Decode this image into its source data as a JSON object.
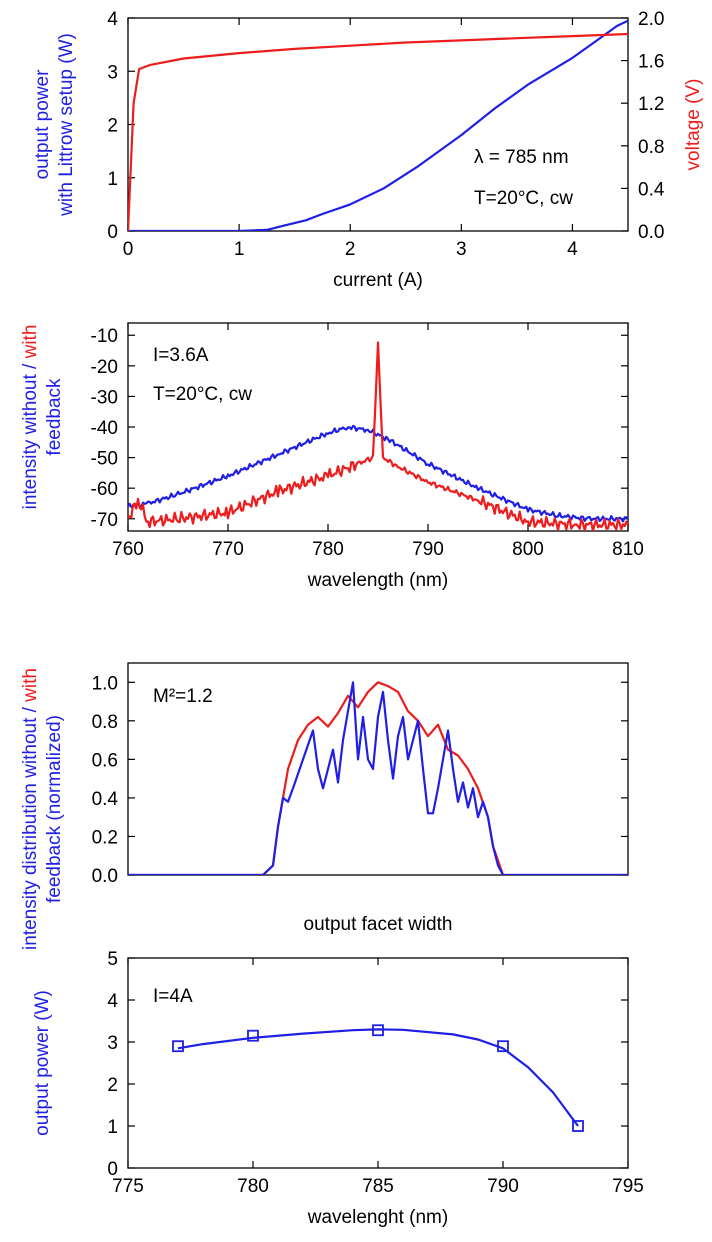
{
  "colors": {
    "blue": "#1f1fe6",
    "red": "#ee1c1c",
    "axis": "#000000"
  },
  "chart_data": [
    {
      "type": "line",
      "xlabel": "current (A)",
      "ylabel": "output power\nwith Littrow setup (W)",
      "y2label": "voltage (V)",
      "xlim": [
        0,
        4.5
      ],
      "ylim": [
        0,
        4
      ],
      "y2lim": [
        0,
        2
      ],
      "xticks": [
        0,
        1,
        2,
        3,
        4
      ],
      "yticks": [
        0,
        1,
        2,
        3,
        4
      ],
      "y2ticks": [
        "0.0",
        "0.4",
        "0.8",
        "1.2",
        "1.6",
        "2.0"
      ],
      "annotations": [
        "λ = 785 nm",
        "T=20°C, cw"
      ],
      "series": [
        {
          "color": "blue",
          "axis": "left",
          "x": [
            0,
            1.0,
            1.25,
            1.4,
            1.6,
            1.75,
            2.0,
            2.3,
            2.6,
            3.0,
            3.3,
            3.6,
            4.0,
            4.2,
            4.4,
            4.5
          ],
          "y": [
            0,
            0,
            0.02,
            0.1,
            0.2,
            0.32,
            0.5,
            0.8,
            1.2,
            1.8,
            2.3,
            2.75,
            3.25,
            3.55,
            3.85,
            3.95
          ]
        },
        {
          "color": "red",
          "axis": "right",
          "x": [
            0,
            0.05,
            0.1,
            0.2,
            0.5,
            1.0,
            1.5,
            2.0,
            2.5,
            3.0,
            3.5,
            4.0,
            4.5
          ],
          "y": [
            0,
            1.2,
            1.52,
            1.56,
            1.62,
            1.67,
            1.71,
            1.74,
            1.77,
            1.79,
            1.81,
            1.83,
            1.85
          ]
        }
      ]
    },
    {
      "type": "line",
      "xlabel": "wavelength (nm)",
      "ylabel_parts": [
        "intensity without / ",
        "with",
        "feedback"
      ],
      "xlim": [
        760,
        810
      ],
      "ylim": [
        -74,
        -6
      ],
      "xticks": [
        760,
        770,
        780,
        790,
        800,
        810
      ],
      "yticks": [
        -10,
        -20,
        -30,
        -40,
        -50,
        -60,
        -70
      ],
      "annotations": [
        "I=3.6A",
        "T=20°C, cw"
      ],
      "series": [
        {
          "color": "blue",
          "x": [
            760,
            762,
            765,
            770,
            775,
            780,
            782,
            784,
            786,
            790,
            795,
            800,
            803,
            806,
            810
          ],
          "y": [
            -66,
            -65,
            -62,
            -56,
            -49,
            -42,
            -40,
            -41,
            -44,
            -52,
            -60,
            -67,
            -69,
            -70,
            -70
          ]
        },
        {
          "color": "red",
          "x": [
            760,
            761,
            762,
            765,
            770,
            775,
            780,
            783,
            784.5,
            785,
            785.5,
            787,
            790,
            795,
            800,
            805,
            810
          ],
          "y": [
            -70,
            -64,
            -71,
            -70,
            -68,
            -61,
            -56,
            -52,
            -50,
            -13,
            -50,
            -53,
            -58,
            -64,
            -71,
            -72,
            -72
          ]
        }
      ]
    },
    {
      "type": "line",
      "xlabel": "output facet width",
      "ylabel_parts": [
        "intensity distribution without / ",
        "with",
        "feedback (normalized)"
      ],
      "xlim": [
        0,
        1
      ],
      "ylim": [
        0,
        1.1
      ],
      "yticks": [
        "0.0",
        "0.2",
        "0.4",
        "0.6",
        "0.8",
        "1.0"
      ],
      "annotations": [
        "M²=1.2"
      ],
      "series": [
        {
          "color": "red",
          "x": [
            0,
            0.27,
            0.29,
            0.3,
            0.32,
            0.34,
            0.36,
            0.38,
            0.4,
            0.42,
            0.44,
            0.46,
            0.48,
            0.5,
            0.52,
            0.54,
            0.56,
            0.58,
            0.6,
            0.62,
            0.64,
            0.66,
            0.68,
            0.7,
            0.72,
            0.73,
            0.75,
            1
          ],
          "y": [
            0,
            0,
            0.05,
            0.25,
            0.55,
            0.7,
            0.78,
            0.82,
            0.77,
            0.84,
            0.93,
            0.87,
            0.95,
            1.0,
            0.98,
            0.95,
            0.85,
            0.8,
            0.72,
            0.78,
            0.65,
            0.62,
            0.55,
            0.45,
            0.3,
            0.15,
            0,
            0
          ]
        },
        {
          "color": "blue",
          "x": [
            0,
            0.27,
            0.29,
            0.3,
            0.31,
            0.32,
            0.33,
            0.35,
            0.37,
            0.38,
            0.39,
            0.41,
            0.42,
            0.43,
            0.45,
            0.46,
            0.47,
            0.48,
            0.49,
            0.5,
            0.51,
            0.52,
            0.53,
            0.54,
            0.55,
            0.56,
            0.57,
            0.58,
            0.59,
            0.6,
            0.61,
            0.62,
            0.63,
            0.64,
            0.65,
            0.66,
            0.67,
            0.68,
            0.69,
            0.7,
            0.71,
            0.72,
            0.73,
            0.74,
            0.75,
            1
          ],
          "y": [
            0,
            0,
            0.05,
            0.25,
            0.4,
            0.38,
            0.45,
            0.6,
            0.75,
            0.55,
            0.45,
            0.65,
            0.48,
            0.7,
            1.0,
            0.6,
            0.82,
            0.6,
            0.55,
            0.82,
            0.95,
            0.7,
            0.5,
            0.72,
            0.82,
            0.6,
            0.7,
            0.8,
            0.55,
            0.32,
            0.32,
            0.45,
            0.6,
            0.75,
            0.55,
            0.38,
            0.48,
            0.35,
            0.45,
            0.3,
            0.38,
            0.3,
            0.15,
            0.05,
            0,
            0
          ]
        }
      ]
    },
    {
      "type": "scatter",
      "xlabel": "wavelenght (nm)",
      "ylabel": "output power (W)",
      "xlim": [
        775,
        795
      ],
      "ylim": [
        0,
        5
      ],
      "xticks": [
        775,
        780,
        785,
        790,
        795
      ],
      "yticks": [
        0,
        1,
        2,
        3,
        4,
        5
      ],
      "annotations": [
        "I=4A"
      ],
      "series": [
        {
          "color": "blue",
          "marker": "square",
          "x": [
            777,
            780,
            785,
            790,
            793
          ],
          "y": [
            2.9,
            3.15,
            3.28,
            2.9,
            1.0
          ]
        }
      ],
      "fit_curve": {
        "x": [
          777,
          778,
          780,
          782,
          784,
          785,
          786,
          788,
          789,
          790,
          791,
          792,
          793
        ],
        "y": [
          2.85,
          2.95,
          3.1,
          3.2,
          3.28,
          3.3,
          3.29,
          3.18,
          3.06,
          2.85,
          2.4,
          1.8,
          1.0
        ]
      }
    }
  ]
}
